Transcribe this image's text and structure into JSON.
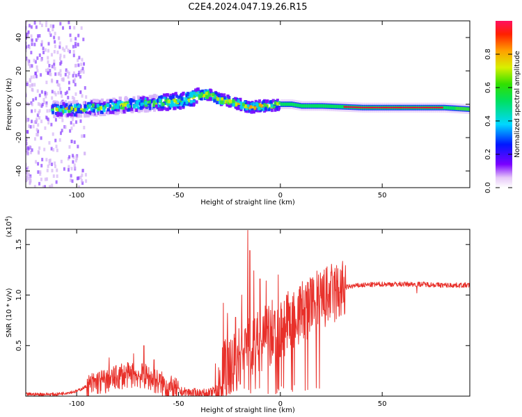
{
  "title": "C2E4.2024.047.19.26.R15",
  "chart_data": [
    {
      "type": "heatmap",
      "xlabel": "Height of straight line (km)",
      "ylabel": "Frequency (Hz)",
      "xlim": [
        -125,
        93
      ],
      "ylim": [
        -50,
        50
      ],
      "xticks": [
        -100,
        -50,
        0,
        50
      ],
      "yticks": [
        -40,
        -20,
        0,
        20,
        40
      ],
      "grid": false,
      "ridge": {
        "x": [
          -112,
          -100,
          -90,
          -80,
          -70,
          -60,
          -50,
          -45,
          -40,
          -35,
          -30,
          -25,
          -20,
          -15,
          -10,
          -5,
          0,
          5,
          10,
          20,
          40,
          60,
          80,
          93
        ],
        "y": [
          -3,
          -3,
          -2,
          -1,
          0,
          1,
          2,
          3,
          5,
          6,
          3,
          2,
          0,
          -2,
          -1,
          -1,
          0,
          0,
          -1,
          -1,
          -2,
          -2,
          -2,
          -3
        ]
      },
      "colorbar": {
        "label": "Normalized spectral amplitude",
        "range": [
          0,
          1
        ],
        "ticks": [
          0.0,
          0.2,
          0.4,
          0.6,
          0.8
        ],
        "tick_labels": [
          "0.0",
          "0.2",
          "0.4",
          "0.6",
          "0.8"
        ]
      }
    },
    {
      "type": "line",
      "xlabel": "Height of straight line (km)",
      "ylabel": "SNR (10 * v/v)",
      "y_multiplier": "(x10",
      "y_multiplier_exp": "4",
      "xlim": [
        -125,
        93
      ],
      "ylim": [
        0,
        1.65
      ],
      "xticks": [
        -100,
        -50,
        0,
        50
      ],
      "yticks": [
        0.5,
        1.0,
        1.5
      ],
      "ytick_labels": [
        "0.5",
        "1.0",
        "1.5"
      ],
      "color": "#e8302a",
      "grid": false,
      "series": [
        {
          "x": [
            -125,
            -110,
            -100,
            -95,
            -90,
            -85,
            -80,
            -75,
            -70,
            -65,
            -60,
            -55,
            -50,
            -45,
            -40,
            -35,
            -30,
            -28,
            -25,
            -22,
            -20,
            -18,
            -15,
            -12,
            -10,
            -8,
            -5,
            -2,
            0,
            3,
            5,
            8,
            10,
            15,
            20,
            25,
            30,
            35,
            40,
            50,
            60,
            70,
            80,
            93
          ],
          "y": [
            0.02,
            0.02,
            0.05,
            0.1,
            0.15,
            0.16,
            0.2,
            0.22,
            0.22,
            0.2,
            0.15,
            0.1,
            0.05,
            0.04,
            0.03,
            0.03,
            0.08,
            0.25,
            0.35,
            0.35,
            0.42,
            0.48,
            0.6,
            0.52,
            0.58,
            0.62,
            0.6,
            0.62,
            0.7,
            0.74,
            0.78,
            0.82,
            0.86,
            0.92,
            0.98,
            1.03,
            1.07,
            1.09,
            1.1,
            1.11,
            1.11,
            1.11,
            1.1,
            1.1
          ]
        }
      ],
      "spikes": [
        {
          "x": -84,
          "y": 0.38
        },
        {
          "x": -78,
          "y": 0.32
        },
        {
          "x": -72,
          "y": 0.42
        },
        {
          "x": -67,
          "y": 0.5
        },
        {
          "x": -62,
          "y": 0.36
        },
        {
          "x": -28,
          "y": 0.92
        },
        {
          "x": -26,
          "y": 0.82
        },
        {
          "x": -22,
          "y": 0.78
        },
        {
          "x": -19,
          "y": 1.0
        },
        {
          "x": -16,
          "y": 1.64
        },
        {
          "x": -15,
          "y": 1.44
        },
        {
          "x": -13,
          "y": 1.24
        },
        {
          "x": -10,
          "y": 1.16
        },
        {
          "x": -7,
          "y": 1.14
        },
        {
          "x": -4,
          "y": 0.95
        },
        {
          "x": -1,
          "y": 1.2
        },
        {
          "x": 3,
          "y": 1.0
        },
        {
          "x": 6,
          "y": 1.08
        },
        {
          "x": 10,
          "y": 1.02
        },
        {
          "x": 14,
          "y": 1.06
        },
        {
          "x": 26,
          "y": 1.1
        },
        {
          "x": 67,
          "y": 1.02
        }
      ]
    }
  ]
}
